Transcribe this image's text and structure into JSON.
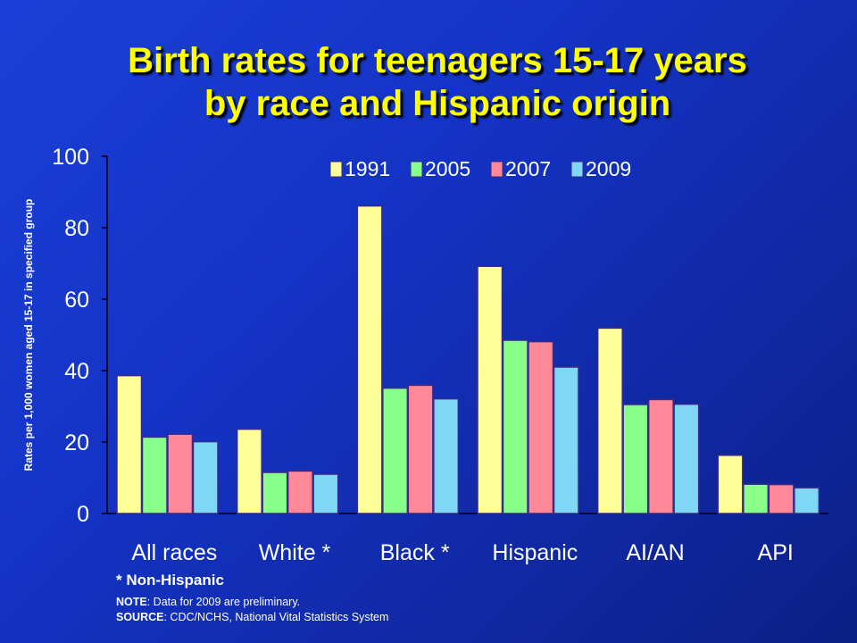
{
  "title": {
    "line1": "Birth rates for teenagers 15-17 years",
    "line2": "by race and Hispanic origin"
  },
  "chart_data": {
    "type": "bar",
    "categories": [
      "All races",
      "White *",
      "Black *",
      "Hispanic",
      "AI/AN",
      "API"
    ],
    "series": [
      {
        "name": "1991",
        "values": [
          38.6,
          23.6,
          86.1,
          69.2,
          51.9,
          16.3
        ],
        "color": "#ffff99"
      },
      {
        "name": "2005",
        "values": [
          21.4,
          11.5,
          35.1,
          48.5,
          30.5,
          8.2
        ],
        "color": "#88ff88"
      },
      {
        "name": "2007",
        "values": [
          22.2,
          11.9,
          35.9,
          48.1,
          31.9,
          8.1
        ],
        "color": "#ff8899"
      },
      {
        "name": "2009",
        "values": [
          20.1,
          11.0,
          32.1,
          41.0,
          30.6,
          7.2
        ],
        "color": "#7fd6f5"
      }
    ],
    "ylabel": "Rates per 1,000 women aged 15-17 in specified group",
    "ylim": [
      0,
      100
    ],
    "yticks": [
      "0",
      "20",
      "40",
      "60",
      "80",
      "100"
    ],
    "legend": "top-right",
    "grid": false
  },
  "notes": {
    "footnote": "* Non-Hispanic",
    "note_label": "NOTE",
    "note_text": ": Data for 2009 are preliminary.",
    "source_label": "SOURCE",
    "source_text": ": CDC/NCHS, National Vital Statistics System"
  }
}
